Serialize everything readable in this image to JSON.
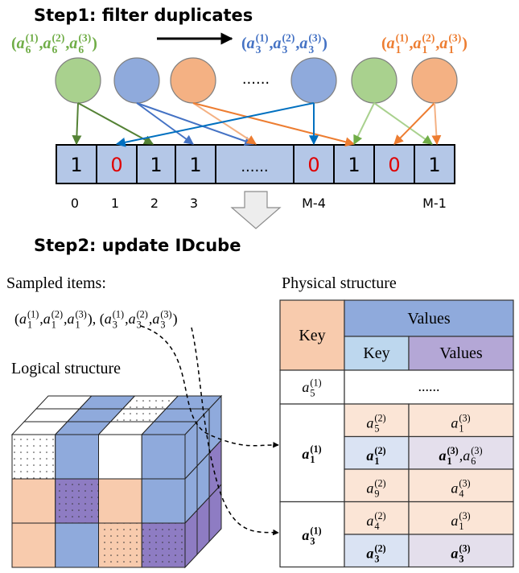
{
  "step1": {
    "title": "Step1: filter duplicates",
    "tuples": [
      {
        "color": "#70AD47",
        "expr": [
          "(",
          {
            "base": "a",
            "sub": "6",
            "sup": "(1)"
          },
          ", ",
          {
            "base": "a",
            "sub": "6",
            "sup": "(2)"
          },
          ", ",
          {
            "base": "a",
            "sub": "6",
            "sup": "(3)"
          },
          ")"
        ]
      },
      {
        "color": "#4472C4",
        "expr": [
          "(",
          {
            "base": "a",
            "sub": "3",
            "sup": "(1)"
          },
          ", ",
          {
            "base": "a",
            "sub": "3",
            "sup": "(2)"
          },
          ", ",
          {
            "base": "a",
            "sub": "3",
            "sup": "(3)"
          },
          ")"
        ]
      },
      {
        "color": "#ED7D31",
        "expr": [
          "(",
          {
            "base": "a",
            "sub": "1",
            "sup": "(1)"
          },
          ", ",
          {
            "base": "a",
            "sub": "1",
            "sup": "(2)"
          },
          ", ",
          {
            "base": "a",
            "sub": "1",
            "sup": "(3)"
          },
          ")"
        ]
      }
    ],
    "nodes_ellipsis": "......",
    "cells": [
      {
        "text": "1"
      },
      {
        "text": "0",
        "highlight": true
      },
      {
        "text": "1"
      },
      {
        "text": "1"
      },
      {
        "text": "......"
      },
      {
        "text": "0",
        "highlight": true
      },
      {
        "text": "1"
      },
      {
        "text": "0",
        "highlight": true
      },
      {
        "text": "1"
      }
    ],
    "indices": [
      "0",
      "1",
      "2",
      "3",
      null,
      "M-4",
      null,
      null,
      "M-1"
    ]
  },
  "step2": {
    "title": "Step2: update IDcube",
    "sampled_label": "Sampled items:",
    "sampled_expr": [
      "(",
      {
        "base": "a",
        "sub": "1",
        "sup": "(1)"
      },
      ", ",
      {
        "base": "a",
        "sub": "1",
        "sup": "(2)"
      },
      ", ",
      {
        "base": "a",
        "sub": "1",
        "sup": "(3)"
      },
      "), (",
      {
        "base": "a",
        "sub": "3",
        "sup": "(1)"
      },
      ", ",
      {
        "base": "a",
        "sub": "3",
        "sup": "(2)"
      },
      ", ",
      {
        "base": "a",
        "sub": "3",
        "sup": "(3)"
      },
      ")"
    ],
    "logical_label": "Logical structure",
    "physical_label": "Physical structure",
    "table": {
      "header": {
        "key": "Key",
        "values": "Values",
        "sub_key": "Key",
        "sub_values": "Values"
      },
      "rows": [
        {
          "key": [
            {
              "base": "a",
              "sub": "5",
              "sup": "(1)"
            }
          ],
          "value": "......"
        },
        {
          "key": [
            {
              "base": "a",
              "sub": "1",
              "sup": "(1)",
              "bold": true
            }
          ],
          "entries": [
            {
              "key": [
                {
                  "base": "a",
                  "sub": "5",
                  "sup": "(2)"
                }
              ],
              "values": [
                {
                  "base": "a",
                  "sub": "1",
                  "sup": "(3)"
                }
              ]
            },
            {
              "highlight": true,
              "key": [
                {
                  "base": "a",
                  "sub": "1",
                  "sup": "(2)",
                  "bold": true
                }
              ],
              "values": [
                {
                  "base": "a",
                  "sub": "1",
                  "sup": "(3)",
                  "bold": true
                },
                ", ",
                {
                  "base": "a",
                  "sub": "6",
                  "sup": "(3)"
                }
              ]
            },
            {
              "key": [
                {
                  "base": "a",
                  "sub": "9",
                  "sup": "(2)"
                }
              ],
              "values": [
                {
                  "base": "a",
                  "sub": "4",
                  "sup": "(3)"
                }
              ]
            }
          ]
        },
        {
          "key": [
            {
              "base": "a",
              "sub": "3",
              "sup": "(1)",
              "bold": true
            }
          ],
          "entries": [
            {
              "key": [
                {
                  "base": "a",
                  "sub": "4",
                  "sup": "(2)"
                }
              ],
              "values": [
                {
                  "base": "a",
                  "sub": "1",
                  "sup": "(3)"
                }
              ]
            },
            {
              "highlight": true,
              "key": [
                {
                  "base": "a",
                  "sub": "3",
                  "sup": "(2)",
                  "bold": true
                }
              ],
              "values": [
                {
                  "base": "a",
                  "sub": "3",
                  "sup": "(3)",
                  "bold": true
                }
              ]
            }
          ]
        }
      ]
    }
  }
}
